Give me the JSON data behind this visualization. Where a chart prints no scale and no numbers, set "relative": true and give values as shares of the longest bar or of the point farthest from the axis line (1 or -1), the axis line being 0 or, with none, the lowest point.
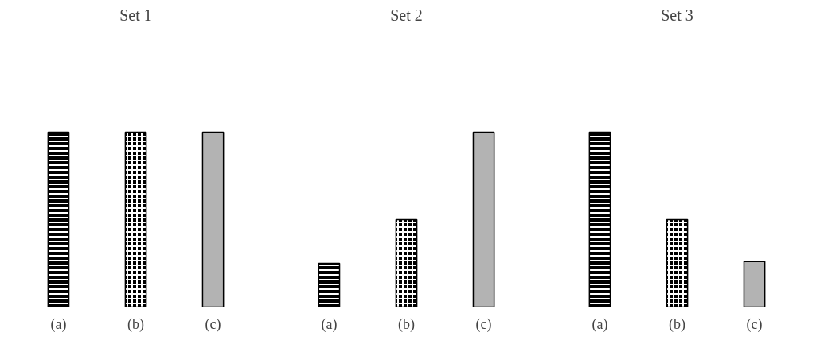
{
  "chart_data": [
    {
      "type": "bar",
      "title": "Set 1",
      "categories": [
        "(a)",
        "(b)",
        "(c)"
      ],
      "relative": true,
      "values": [
        1,
        1,
        1
      ],
      "colors": [
        "#000000",
        "#000000",
        "#b3b3b3"
      ]
    },
    {
      "type": "bar",
      "title": "Set 2",
      "categories": [
        "(a)",
        "(b)",
        "(c)"
      ],
      "relative": true,
      "values": [
        0.25,
        0.5,
        1
      ],
      "colors": [
        "#000000",
        "#000000",
        "#b3b3b3"
      ]
    },
    {
      "type": "bar",
      "title": "Set 3",
      "categories": [
        "(a)",
        "(b)",
        "(c)"
      ],
      "relative": true,
      "values": [
        1,
        0.5,
        0.26
      ],
      "colors": [
        "#000000",
        "#000000",
        "#b3b3b3"
      ]
    }
  ]
}
